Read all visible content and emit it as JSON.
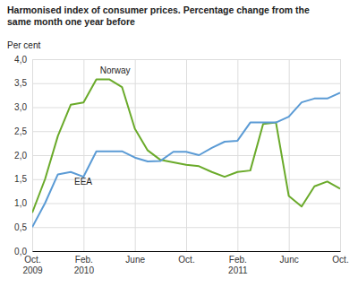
{
  "chart_data": {
    "type": "line",
    "title": "Harmonised index of consumer prices. Percentage change from the\nsame month one year before",
    "ylabel": "Per cent",
    "categories": [
      "Oct.\n2009",
      null,
      null,
      null,
      "Feb.\n2010",
      null,
      null,
      null,
      "June",
      null,
      null,
      null,
      "Oct.",
      null,
      null,
      null,
      "Feb.\n2011",
      null,
      null,
      null,
      "Junc",
      null,
      null,
      null,
      "Oct."
    ],
    "series": [
      {
        "name": "Norway",
        "color": "#6aaa2a",
        "values": [
          0.8,
          1.5,
          2.4,
          3.05,
          3.1,
          3.58,
          3.58,
          3.42,
          2.55,
          2.1,
          1.9,
          1.85,
          1.8,
          1.77,
          1.65,
          1.55,
          1.65,
          1.68,
          2.65,
          2.68,
          1.15,
          0.93,
          1.35,
          1.45,
          1.3
        ]
      },
      {
        "name": "EEA",
        "color": "#5b9bd5",
        "values": [
          0.5,
          1.0,
          1.6,
          1.65,
          1.55,
          2.08,
          2.08,
          2.08,
          1.95,
          1.87,
          1.88,
          2.07,
          2.07,
          2.0,
          2.15,
          2.28,
          2.3,
          2.68,
          2.68,
          2.68,
          2.8,
          3.1,
          3.18,
          3.18,
          3.3
        ]
      }
    ],
    "ylim": [
      0.0,
      4.0
    ],
    "yticks": [
      {
        "value": 0.0,
        "label": "0,0"
      },
      {
        "value": 0.5,
        "label": "0,5"
      },
      {
        "value": 1.0,
        "label": "1,0"
      },
      {
        "value": 1.5,
        "label": "1,5"
      },
      {
        "value": 2.0,
        "label": "2,0"
      },
      {
        "value": 2.5,
        "label": "2,5"
      },
      {
        "value": 3.0,
        "label": "3,0"
      },
      {
        "value": 3.5,
        "label": "3,5"
      },
      {
        "value": 4.0,
        "label": "4,0"
      }
    ],
    "grid": true
  }
}
